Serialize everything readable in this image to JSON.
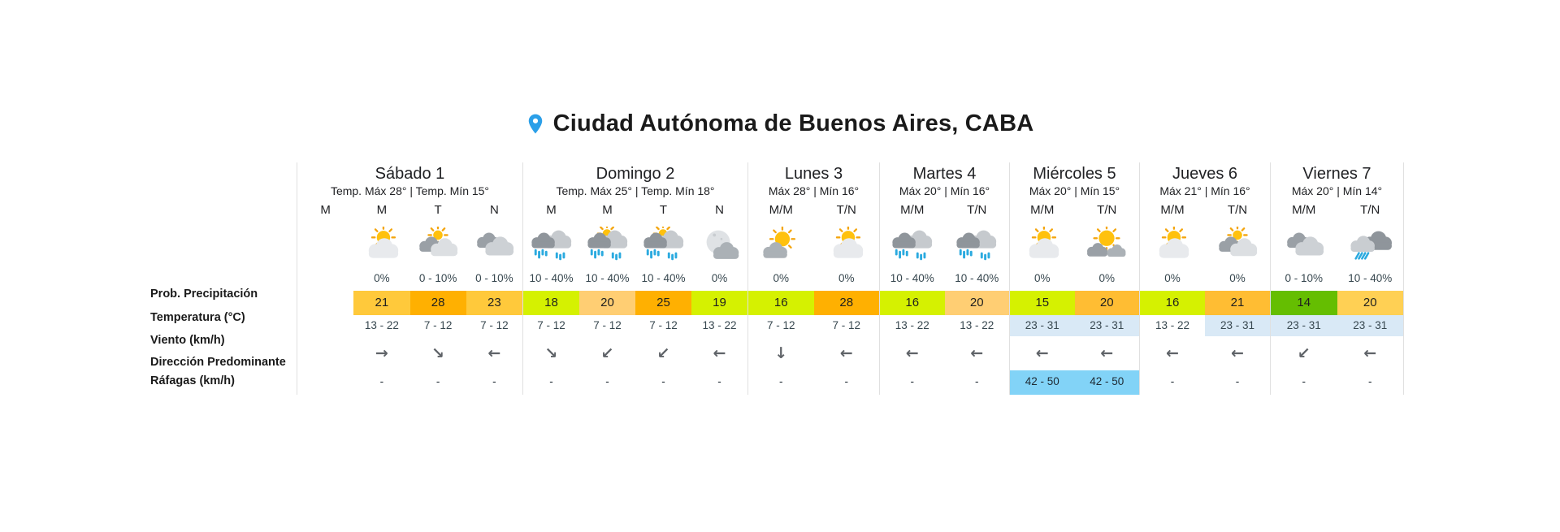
{
  "header": {
    "title": "Ciudad Autónoma de Buenos Aires, CABA",
    "pin_icon": "location-pin",
    "pin_color": "#2B9FE8"
  },
  "row_labels": [
    "Prob. Precipitación",
    "Temperatura (°C)",
    "Viento (km/h)",
    "Dirección Predominante",
    "Ráfagas (km/h)"
  ],
  "colors": {
    "temp_chartreuse": "#D5F101",
    "temp_green": "#65BE01",
    "temp_yellow": "#FFC93B",
    "temp_light_amber": "#FFCE73",
    "temp_amber": "#FFBD33",
    "temp_pale_yellow": "#FFD054",
    "temp_orange": "#FFB001",
    "wind_blue": "#D9E9F6",
    "gusts_blue": "#82D3F7",
    "divider": "#E0E0E0",
    "rain_drop": "#2BAADF"
  },
  "days": [
    {
      "name": "Sábado 1",
      "subtitle": "Temp. Máx 28° | Temp. Mín 15°",
      "cols": [
        {
          "period": "M",
          "empty": true
        },
        {
          "period": "M",
          "icon": "sun-behind-cloud",
          "precip": "0%",
          "temp": "21",
          "temp_bg": "#FFC93B",
          "wind": "13 - 22",
          "wind_bg": "",
          "dir": "→",
          "dir_name": "right",
          "gusts": "-",
          "gusts_bg": ""
        },
        {
          "period": "T",
          "icon": "sun-gray-clouds",
          "precip": "0 - 10%",
          "temp": "28",
          "temp_bg": "#FFB001",
          "wind": "7 - 12",
          "wind_bg": "",
          "dir": "↘",
          "dir_name": "down-right",
          "gusts": "-",
          "gusts_bg": ""
        },
        {
          "period": "N",
          "icon": "clouds",
          "precip": "0 - 10%",
          "temp": "23",
          "temp_bg": "#FFC93B",
          "wind": "7 - 12",
          "wind_bg": "",
          "dir": "←",
          "dir_name": "left",
          "gusts": "-",
          "gusts_bg": ""
        }
      ]
    },
    {
      "name": "Domingo 2",
      "subtitle": "Temp. Máx 25° | Temp. Mín 18°",
      "cols": [
        {
          "period": "M",
          "icon": "rain",
          "precip": "10 - 40%",
          "temp": "18",
          "temp_bg": "#D5F101",
          "wind": "7 - 12",
          "wind_bg": "",
          "dir": "↘",
          "dir_name": "down-right",
          "gusts": "-",
          "gusts_bg": ""
        },
        {
          "period": "M",
          "icon": "rain-sun",
          "precip": "10 - 40%",
          "temp": "20",
          "temp_bg": "#FFCE73",
          "wind": "7 - 12",
          "wind_bg": "",
          "dir": "↙",
          "dir_name": "down-left",
          "gusts": "-",
          "gusts_bg": ""
        },
        {
          "period": "T",
          "icon": "rain-sun",
          "precip": "10 - 40%",
          "temp": "25",
          "temp_bg": "#FFB001",
          "wind": "7 - 12",
          "wind_bg": "",
          "dir": "↙",
          "dir_name": "down-left",
          "gusts": "-",
          "gusts_bg": ""
        },
        {
          "period": "N",
          "icon": "moon-cloud",
          "precip": "0%",
          "temp": "19",
          "temp_bg": "#D5F101",
          "wind": "13 - 22",
          "wind_bg": "",
          "dir": "←",
          "dir_name": "left",
          "gusts": "-",
          "gusts_bg": ""
        }
      ]
    },
    {
      "name": "Lunes 3",
      "subtitle": "Máx 28° | Mín 16°",
      "cols": [
        {
          "period": "M/M",
          "icon": "sun-cloud-front",
          "precip": "0%",
          "temp": "16",
          "temp_bg": "#D5F101",
          "wind": "7 - 12",
          "wind_bg": "",
          "dir": "↓",
          "dir_name": "down",
          "gusts": "-",
          "gusts_bg": ""
        },
        {
          "period": "T/N",
          "icon": "sun-behind-cloud",
          "precip": "0%",
          "temp": "28",
          "temp_bg": "#FFB001",
          "wind": "7 - 12",
          "wind_bg": "",
          "dir": "←",
          "dir_name": "left",
          "gusts": "-",
          "gusts_bg": ""
        }
      ]
    },
    {
      "name": "Martes 4",
      "subtitle": "Máx 20° | Mín 16°",
      "cols": [
        {
          "period": "M/M",
          "icon": "rain",
          "precip": "10 - 40%",
          "temp": "16",
          "temp_bg": "#D5F101",
          "wind": "13 - 22",
          "wind_bg": "",
          "dir": "←",
          "dir_name": "left",
          "gusts": "-",
          "gusts_bg": ""
        },
        {
          "period": "T/N",
          "icon": "rain",
          "precip": "10 - 40%",
          "temp": "20",
          "temp_bg": "#FFCE73",
          "wind": "13 - 22",
          "wind_bg": "",
          "dir": "←",
          "dir_name": "left",
          "gusts": "-",
          "gusts_bg": ""
        }
      ]
    },
    {
      "name": "Miércoles 5",
      "subtitle": "Máx 20° | Mín 15°",
      "cols": [
        {
          "period": "M/M",
          "icon": "sun-behind-cloud",
          "precip": "0%",
          "temp": "15",
          "temp_bg": "#D5F101",
          "wind": "23 - 31",
          "wind_bg": "#D9E9F6",
          "dir": "←",
          "dir_name": "left",
          "gusts": "42 - 50",
          "gusts_bg": "#82D3F7"
        },
        {
          "period": "T/N",
          "icon": "sun-clouds-front",
          "precip": "0%",
          "temp": "20",
          "temp_bg": "#FFBD33",
          "wind": "23 - 31",
          "wind_bg": "#D9E9F6",
          "dir": "←",
          "dir_name": "left",
          "gusts": "42 - 50",
          "gusts_bg": "#82D3F7"
        }
      ]
    },
    {
      "name": "Jueves 6",
      "subtitle": "Máx 21° | Mín 16°",
      "cols": [
        {
          "period": "M/M",
          "icon": "sun-behind-cloud",
          "precip": "0%",
          "temp": "16",
          "temp_bg": "#D5F101",
          "wind": "13 - 22",
          "wind_bg": "",
          "dir": "←",
          "dir_name": "left",
          "gusts": "-",
          "gusts_bg": ""
        },
        {
          "period": "T/N",
          "icon": "sun-gray-clouds",
          "precip": "0%",
          "temp": "21",
          "temp_bg": "#FFBD33",
          "wind": "23 - 31",
          "wind_bg": "#D9E9F6",
          "dir": "←",
          "dir_name": "left",
          "gusts": "-",
          "gusts_bg": ""
        }
      ]
    },
    {
      "name": "Viernes 7",
      "subtitle": "Máx 20° | Mín 14°",
      "cols": [
        {
          "period": "M/M",
          "icon": "clouds",
          "precip": "0 - 10%",
          "temp": "14",
          "temp_bg": "#65BE01",
          "wind": "23 - 31",
          "wind_bg": "#D9E9F6",
          "dir": "↙",
          "dir_name": "down-left",
          "gusts": "-",
          "gusts_bg": ""
        },
        {
          "period": "T/N",
          "icon": "rain-slant",
          "precip": "10 - 40%",
          "temp": "20",
          "temp_bg": "#FFD054",
          "wind": "23 - 31",
          "wind_bg": "#D9E9F6",
          "dir": "←",
          "dir_name": "left",
          "gusts": "-",
          "gusts_bg": ""
        }
      ]
    }
  ]
}
